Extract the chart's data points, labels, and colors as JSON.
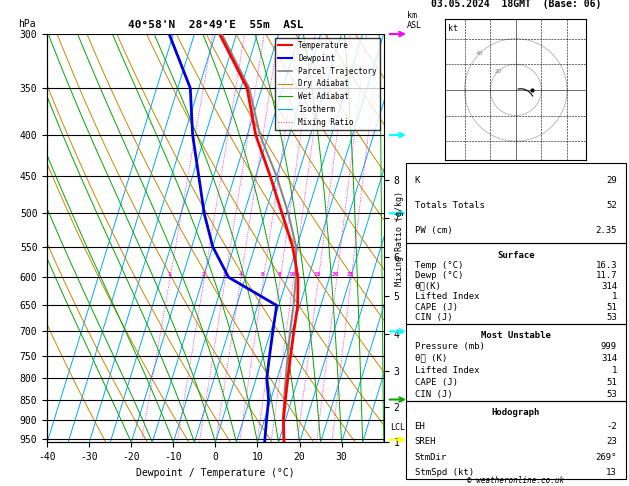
{
  "title_left": "40°58'N  28°49'E  55m  ASL",
  "title_right": "03.05.2024  18GMT  (Base: 06)",
  "xlabel": "Dewpoint / Temperature (°C)",
  "ylabel_left": "hPa",
  "pressure_ticks": [
    300,
    350,
    400,
    450,
    500,
    550,
    600,
    650,
    700,
    750,
    800,
    850,
    900,
    950
  ],
  "temp_range": [
    -40,
    40
  ],
  "temp_ticks": [
    -40,
    -30,
    -20,
    -10,
    0,
    10,
    20,
    30
  ],
  "p_min": 300,
  "p_max": 960,
  "skew_factor": 30,
  "isotherm_values": [
    -40,
    -35,
    -30,
    -25,
    -20,
    -15,
    -10,
    -5,
    0,
    5,
    10,
    15,
    20,
    25,
    30,
    35,
    40
  ],
  "isotherm_color": "#00AAFF",
  "dry_adiabat_color": "#CC8800",
  "wet_adiabat_color": "#00AA00",
  "mixing_ratio_color": "#FF00FF",
  "mixing_ratio_values": [
    1,
    2,
    3,
    4,
    6,
    8,
    10,
    15,
    20,
    25
  ],
  "km_ticks": [
    1,
    2,
    3,
    4,
    5,
    6,
    7,
    8
  ],
  "km_pressures": [
    977,
    883,
    795,
    715,
    640,
    572,
    511,
    457
  ],
  "temp_profile_p": [
    960,
    950,
    900,
    850,
    800,
    750,
    700,
    650,
    600,
    550,
    500,
    450,
    400,
    350,
    300
  ],
  "temp_profile_t": [
    16.3,
    16.0,
    14.5,
    13.5,
    12.5,
    11.5,
    10.5,
    9.5,
    7.5,
    4.0,
    -1.0,
    -6.5,
    -13.0,
    -18.5,
    -29.0
  ],
  "dewp_profile_p": [
    960,
    950,
    900,
    850,
    800,
    750,
    700,
    650,
    600,
    550,
    500,
    450,
    400,
    350,
    300
  ],
  "dewp_profile_t": [
    11.7,
    11.5,
    10.5,
    9.5,
    7.5,
    6.5,
    5.5,
    4.5,
    -9.0,
    -15.0,
    -19.5,
    -23.5,
    -28.0,
    -32.0,
    -41.0
  ],
  "parcel_profile_p": [
    960,
    950,
    900,
    850,
    800,
    750,
    700,
    650,
    600,
    550,
    500,
    450,
    400,
    350,
    300
  ],
  "parcel_profile_t": [
    16.3,
    16.0,
    14.4,
    13.2,
    12.0,
    10.8,
    9.6,
    8.5,
    7.0,
    4.8,
    0.5,
    -5.0,
    -12.0,
    -18.0,
    -28.5
  ],
  "lcl_pressure": 937,
  "temp_color": "#FF0000",
  "dewp_color": "#0000DD",
  "parcel_color": "#888888",
  "info_K": 29,
  "info_TT": 52,
  "info_PW": 2.35,
  "surf_temp": 16.3,
  "surf_dewp": 11.7,
  "surf_theta": 314,
  "surf_li": 1,
  "surf_cape": 51,
  "surf_cin": 53,
  "mu_pres": 999,
  "mu_theta": 314,
  "mu_li": 1,
  "mu_cape": 51,
  "mu_cin": 53,
  "hodo_eh": -2,
  "hodo_sreh": 23,
  "hodo_stmdir": 269,
  "hodo_stmspd": 13,
  "copyright": "© weatheronline.co.uk",
  "arrow_colors": [
    "#FF00FF",
    "#00FFFF",
    "#00FFFF",
    "#00FFFF",
    "#00AA00",
    "#FFFF00"
  ],
  "arrow_pressures": [
    300,
    400,
    500,
    700,
    850,
    953
  ]
}
